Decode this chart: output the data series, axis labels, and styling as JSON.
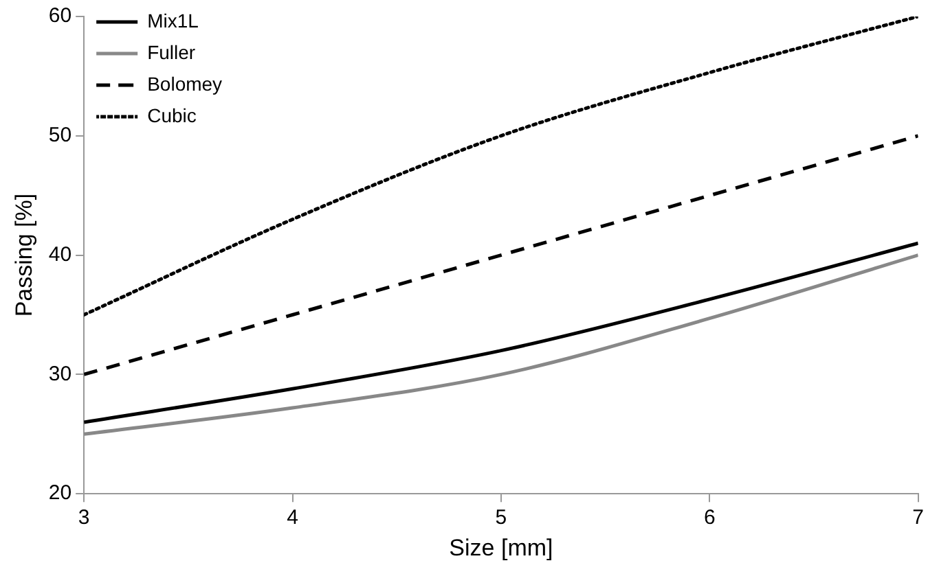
{
  "chart_data": {
    "type": "line",
    "xlabel": "Size [mm]",
    "ylabel": "Passing [%]",
    "x": [
      3,
      4,
      5,
      6,
      7
    ],
    "xlim": [
      3,
      7
    ],
    "xticks": [
      3,
      4,
      5,
      6,
      7
    ],
    "ylim": [
      20,
      60
    ],
    "yticks": [
      20,
      30,
      40,
      50,
      60
    ],
    "grid": false,
    "legend": "top left",
    "marker": "none",
    "series": [
      {
        "name": "Mix1L",
        "color": "#000000",
        "line_style": "solid",
        "values": [
          26,
          28.8,
          32,
          36.3,
          41
        ]
      },
      {
        "name": "Fuller",
        "color": "#888888",
        "line_style": "solid",
        "values": [
          25,
          27.2,
          30,
          34.7,
          40
        ]
      },
      {
        "name": "Bolomey",
        "color": "#000000",
        "line_style": "dashed",
        "values": [
          30,
          35,
          40,
          45,
          50
        ]
      },
      {
        "name": "Cubic",
        "color": "#000000",
        "line_style": "dotted",
        "values": [
          35,
          43,
          50,
          55.3,
          60
        ]
      }
    ]
  }
}
